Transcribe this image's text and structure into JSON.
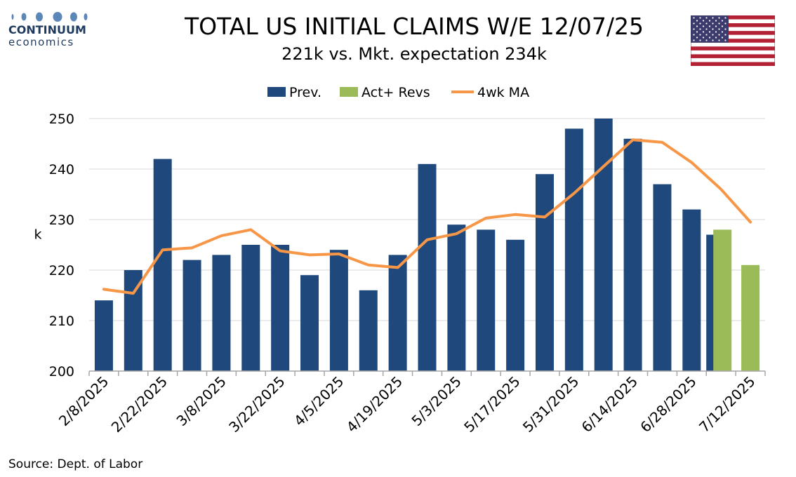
{
  "logo": {
    "name": "CONTINUUM",
    "sub": "economics"
  },
  "title": "TOTAL US INITIAL CLAIMS W/E 12/07/25",
  "subtitle": "221k vs. Mkt. expectation 234k",
  "source": "Source: Dept. of Labor",
  "colors": {
    "prev": "#1f497d",
    "act": "#9bbb59",
    "ma": "#f79646"
  },
  "chart_data": {
    "type": "bar",
    "ylabel": "k",
    "ylim": [
      200,
      250
    ],
    "yticks": [
      200,
      210,
      220,
      230,
      240,
      250
    ],
    "legend": {
      "position": "top"
    },
    "x_tick_labels": [
      "2/8/2025",
      "2/22/2025",
      "3/8/2025",
      "3/22/2025",
      "4/5/2025",
      "4/19/2025",
      "5/3/2025",
      "5/17/2025",
      "5/31/2025",
      "6/14/2025",
      "6/28/2025",
      "7/12/2025"
    ],
    "series": [
      {
        "name": "Prev.",
        "kind": "bar",
        "values": [
          214,
          220,
          242,
          222,
          223,
          225,
          225,
          219,
          224,
          216,
          223,
          241,
          229,
          228,
          226,
          239,
          248,
          250,
          246,
          237,
          232,
          227,
          null
        ]
      },
      {
        "name": "Act+ Revs",
        "kind": "bar",
        "values": [
          null,
          null,
          null,
          null,
          null,
          null,
          null,
          null,
          null,
          null,
          null,
          null,
          null,
          null,
          null,
          null,
          null,
          null,
          null,
          null,
          null,
          228,
          221
        ]
      },
      {
        "name": "4wk MA",
        "kind": "line",
        "values": [
          216.2,
          215.4,
          224,
          224.4,
          226.8,
          228,
          223.8,
          223,
          223.2,
          221,
          220.5,
          226,
          227.2,
          230.3,
          231,
          230.5,
          235.2,
          240.5,
          245.8,
          245.3,
          241.3,
          236,
          229.5
        ]
      }
    ]
  }
}
